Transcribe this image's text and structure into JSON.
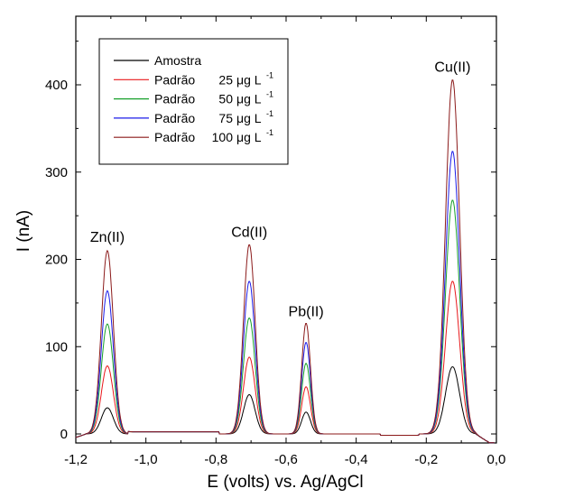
{
  "chart_data": {
    "type": "line",
    "title": "",
    "xlabel": "E (volts) vs. Ag/AgCl",
    "ylabel": "I (nA)",
    "xlim": [
      -1.2,
      0.0
    ],
    "ylim": [
      -10,
      460
    ],
    "x_ticks": [
      -1.2,
      -1.0,
      -0.8,
      -0.6,
      -0.4,
      -0.2,
      0.0
    ],
    "x_tick_labels": [
      "-1,2",
      "-1,0",
      "-0,8",
      "-0,6",
      "-0,4",
      "-0,2",
      "0,0"
    ],
    "y_ticks": [
      0,
      100,
      200,
      300,
      400
    ],
    "y_tick_labels": [
      "0",
      "100",
      "200",
      "300",
      "400"
    ],
    "grid": false,
    "legend_placement": "top-left",
    "annotations": [
      {
        "text": "Zn(II)",
        "x": -1.11,
        "y": 220
      },
      {
        "text": "Cd(II)",
        "x": -0.705,
        "y": 226
      },
      {
        "text": "Pb(II)",
        "x": -0.543,
        "y": 135
      },
      {
        "text": "Cu(II)",
        "x": -0.125,
        "y": 415
      }
    ],
    "peak_positions": {
      "Zn(II)": -1.11,
      "Cd(II)": -0.705,
      "Pb(II)": -0.543,
      "Cu(II)": -0.125
    },
    "series": [
      {
        "legend_prefix": "Amostra",
        "legend_conc": "",
        "color": "#000000",
        "peaks": {
          "Zn(II)": 30,
          "Cd(II)": 45,
          "Pb(II)": 25,
          "Cu(II)": 77
        }
      },
      {
        "legend_prefix": "Padrão",
        "legend_conc": "25",
        "color": "#e8191c",
        "peaks": {
          "Zn(II)": 78,
          "Cd(II)": 88,
          "Pb(II)": 54,
          "Cu(II)": 175
        }
      },
      {
        "legend_prefix": "Padrão",
        "legend_conc": "50",
        "color": "#17a02a",
        "peaks": {
          "Zn(II)": 126,
          "Cd(II)": 133,
          "Pb(II)": 81,
          "Cu(II)": 268
        }
      },
      {
        "legend_prefix": "Padrão",
        "legend_conc": "75",
        "color": "#1c1ce8",
        "peaks": {
          "Zn(II)": 164,
          "Cd(II)": 175,
          "Pb(II)": 105,
          "Cu(II)": 324
        }
      },
      {
        "legend_prefix": "Padrão",
        "legend_conc": "100",
        "color": "#8b1a1a",
        "peaks": {
          "Zn(II)": 210,
          "Cd(II)": 217,
          "Pb(II)": 127,
          "Cu(II)": 406
        }
      }
    ],
    "legend_unit": "μg L",
    "legend_unit_exponent": "-1"
  }
}
